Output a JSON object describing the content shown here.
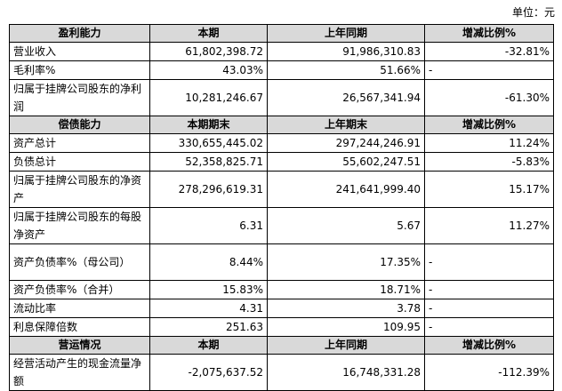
{
  "unit": "单位：元",
  "sections": [
    {
      "header": [
        "盈利能力",
        "本期",
        "上年同期",
        "增减比例%"
      ],
      "rows": [
        [
          "营业收入",
          "61,802,398.72",
          "91,986,310.83",
          "-32.81%"
        ],
        [
          "毛利率%",
          "43.03%",
          "51.66%",
          "-"
        ],
        [
          "归属于挂牌公司股东的净利润",
          "10,281,246.67",
          "26,567,341.94",
          "-61.30%"
        ]
      ]
    },
    {
      "header": [
        "偿债能力",
        "本期期末",
        "上年期末",
        "增减比例%"
      ],
      "rows": [
        [
          "资产总计",
          "330,655,445.02",
          "297,244,246.91",
          "11.24%"
        ],
        [
          "负债总计",
          "52,358,825.71",
          "55,602,247.51",
          "-5.83%"
        ],
        [
          "归属于挂牌公司股东的净资产",
          "278,296,619.31",
          "241,641,999.40",
          "15.17%"
        ],
        [
          "归属于挂牌公司股东的每股净资产",
          "6.31",
          "5.67",
          "11.27%"
        ],
        [
          "资产负债率%（母公司）",
          "8.44%",
          "17.35%",
          "-"
        ],
        [
          "资产负债率%（合并）",
          "15.83%",
          "18.71%",
          "-"
        ],
        [
          "流动比率",
          "4.31",
          "3.78",
          "-"
        ],
        [
          "利息保障倍数",
          "251.63",
          "109.95",
          "-"
        ]
      ]
    },
    {
      "header": [
        "营运情况",
        "本期",
        "上年同期",
        "增减比例%"
      ],
      "rows": [
        [
          "经营活动产生的现金流量净额",
          "-2,075,637.52",
          "16,748,331.28",
          "-112.39%"
        ]
      ]
    }
  ]
}
